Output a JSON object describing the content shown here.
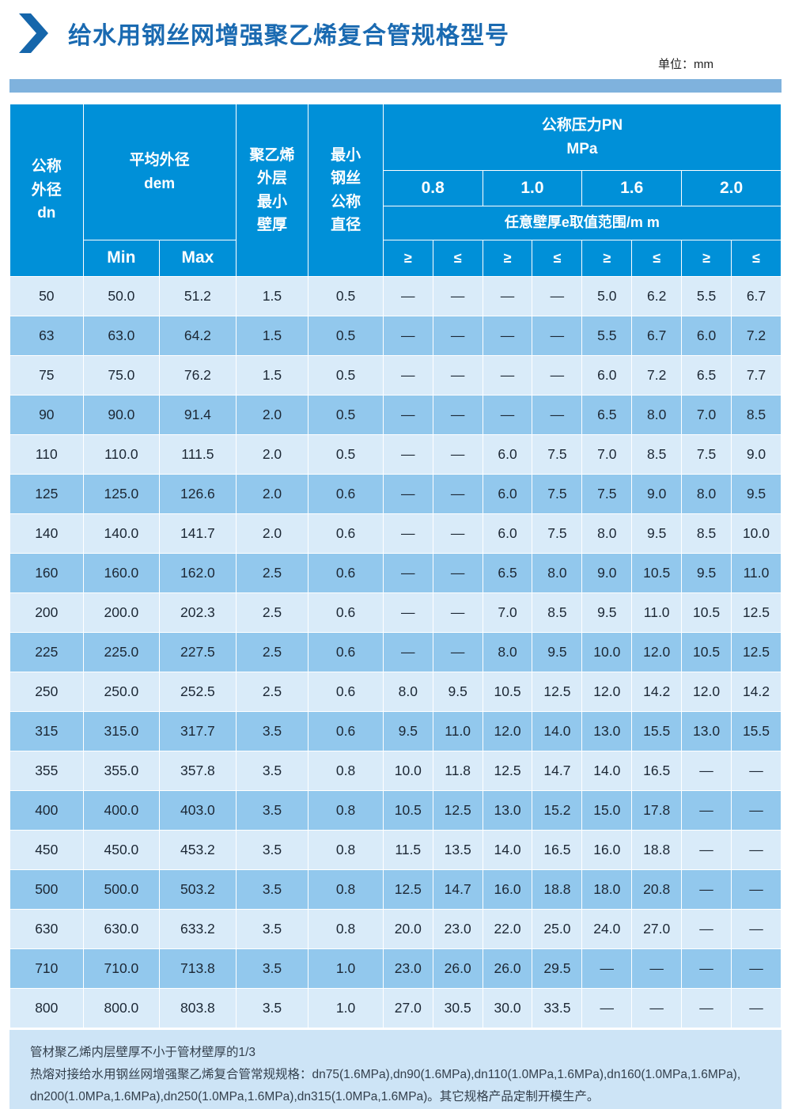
{
  "page": {
    "title": "给水用钢丝网增强聚乙烯复合管规格型号",
    "unit_label": "单位：mm",
    "accent_color": "#0090d8",
    "title_color": "#1a6ab1",
    "row_light_color": "#d9ebf9",
    "row_dark_color": "#92c8ed"
  },
  "table": {
    "headers": {
      "dn": "公称\n外径\ndn",
      "dem": "平均外径\ndem",
      "pe_layer": "聚乙烯\n外层\n最小\n壁厚",
      "wire": "最小\n钢丝\n公称\n直径",
      "pn": "公称压力PN\nMPa",
      "pressures": [
        "0.8",
        "1.0",
        "1.6",
        "2.0"
      ],
      "e_range": "任意壁厚e取值范围/m m",
      "min": "Min",
      "max": "Max",
      "ge": "≥",
      "le": "≤"
    },
    "rows": [
      [
        "50",
        "50.0",
        "51.2",
        "1.5",
        "0.5",
        "—",
        "—",
        "—",
        "—",
        "5.0",
        "6.2",
        "5.5",
        "6.7"
      ],
      [
        "63",
        "63.0",
        "64.2",
        "1.5",
        "0.5",
        "—",
        "—",
        "—",
        "—",
        "5.5",
        "6.7",
        "6.0",
        "7.2"
      ],
      [
        "75",
        "75.0",
        "76.2",
        "1.5",
        "0.5",
        "—",
        "—",
        "—",
        "—",
        "6.0",
        "7.2",
        "6.5",
        "7.7"
      ],
      [
        "90",
        "90.0",
        "91.4",
        "2.0",
        "0.5",
        "—",
        "—",
        "—",
        "—",
        "6.5",
        "8.0",
        "7.0",
        "8.5"
      ],
      [
        "110",
        "110.0",
        "111.5",
        "2.0",
        "0.5",
        "—",
        "—",
        "6.0",
        "7.5",
        "7.0",
        "8.5",
        "7.5",
        "9.0"
      ],
      [
        "125",
        "125.0",
        "126.6",
        "2.0",
        "0.6",
        "—",
        "—",
        "6.0",
        "7.5",
        "7.5",
        "9.0",
        "8.0",
        "9.5"
      ],
      [
        "140",
        "140.0",
        "141.7",
        "2.0",
        "0.6",
        "—",
        "—",
        "6.0",
        "7.5",
        "8.0",
        "9.5",
        "8.5",
        "10.0"
      ],
      [
        "160",
        "160.0",
        "162.0",
        "2.5",
        "0.6",
        "—",
        "—",
        "6.5",
        "8.0",
        "9.0",
        "10.5",
        "9.5",
        "11.0"
      ],
      [
        "200",
        "200.0",
        "202.3",
        "2.5",
        "0.6",
        "—",
        "—",
        "7.0",
        "8.5",
        "9.5",
        "11.0",
        "10.5",
        "12.5"
      ],
      [
        "225",
        "225.0",
        "227.5",
        "2.5",
        "0.6",
        "—",
        "—",
        "8.0",
        "9.5",
        "10.0",
        "12.0",
        "10.5",
        "12.5"
      ],
      [
        "250",
        "250.0",
        "252.5",
        "2.5",
        "0.6",
        "8.0",
        "9.5",
        "10.5",
        "12.5",
        "12.0",
        "14.2",
        "12.0",
        "14.2"
      ],
      [
        "315",
        "315.0",
        "317.7",
        "3.5",
        "0.6",
        "9.5",
        "11.0",
        "12.0",
        "14.0",
        "13.0",
        "15.5",
        "13.0",
        "15.5"
      ],
      [
        "355",
        "355.0",
        "357.8",
        "3.5",
        "0.8",
        "10.0",
        "11.8",
        "12.5",
        "14.7",
        "14.0",
        "16.5",
        "—",
        "—"
      ],
      [
        "400",
        "400.0",
        "403.0",
        "3.5",
        "0.8",
        "10.5",
        "12.5",
        "13.0",
        "15.2",
        "15.0",
        "17.8",
        "—",
        "—"
      ],
      [
        "450",
        "450.0",
        "453.2",
        "3.5",
        "0.8",
        "11.5",
        "13.5",
        "14.0",
        "16.5",
        "16.0",
        "18.8",
        "—",
        "—"
      ],
      [
        "500",
        "500.0",
        "503.2",
        "3.5",
        "0.8",
        "12.5",
        "14.7",
        "16.0",
        "18.8",
        "18.0",
        "20.8",
        "—",
        "—"
      ],
      [
        "630",
        "630.0",
        "633.2",
        "3.5",
        "0.8",
        "20.0",
        "23.0",
        "22.0",
        "25.0",
        "24.0",
        "27.0",
        "—",
        "—"
      ],
      [
        "710",
        "710.0",
        "713.8",
        "3.5",
        "1.0",
        "23.0",
        "26.0",
        "26.0",
        "29.5",
        "—",
        "—",
        "—",
        "—"
      ],
      [
        "800",
        "800.0",
        "803.8",
        "3.5",
        "1.0",
        "27.0",
        "30.5",
        "30.0",
        "33.5",
        "—",
        "—",
        "—",
        "—"
      ]
    ]
  },
  "notes": {
    "lines": [
      "管材聚乙烯内层壁厚不小于管材壁厚的1/3",
      "热熔对接给水用钢丝网增强聚乙烯复合管常规规格：dn75(1.6MPa),dn90(1.6MPa),dn110(1.0MPa,1.6MPa),dn160(1.0MPa,1.6MPa),",
      "dn200(1.0MPa,1.6MPa),dn250(1.0MPa,1.6MPa),dn315(1.0MPa,1.6MPa)。其它规格产品定制开模生产。"
    ]
  }
}
